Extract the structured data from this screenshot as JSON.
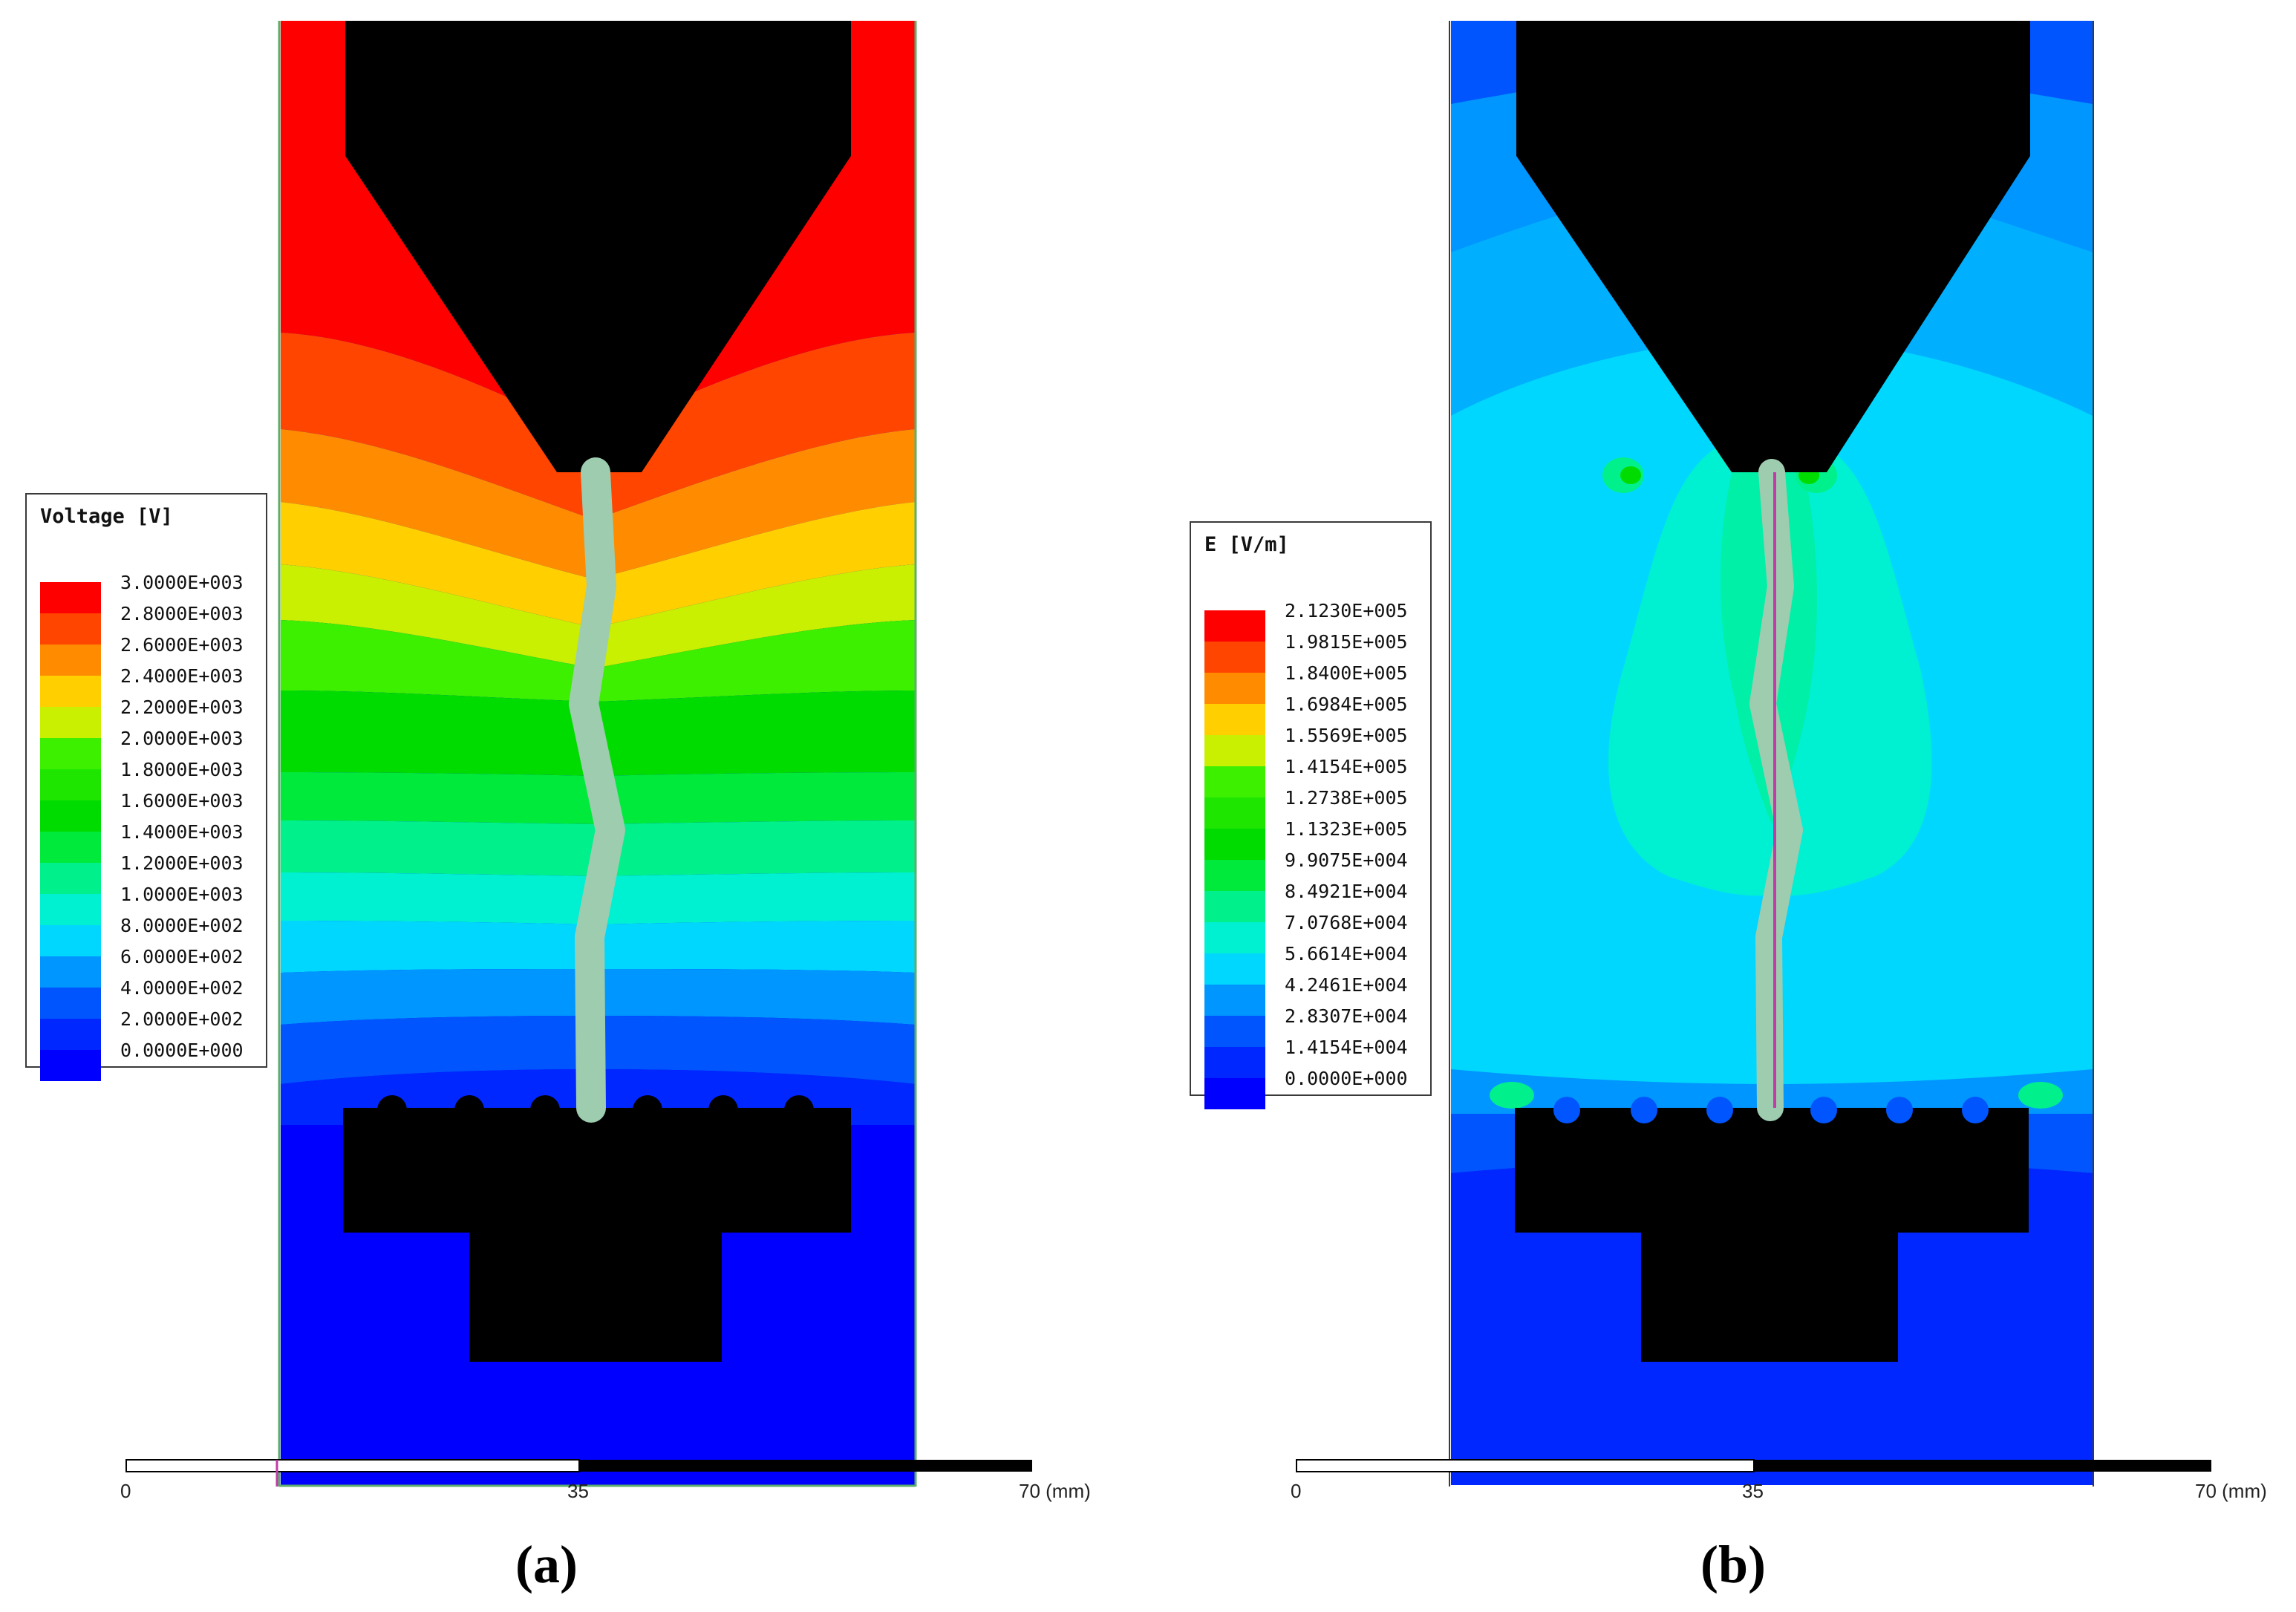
{
  "panels": [
    {
      "caption": "(a)",
      "legend": {
        "title": "Voltage [V]",
        "values": [
          "3.0000E+003",
          "2.8000E+003",
          "2.6000E+003",
          "2.4000E+003",
          "2.2000E+003",
          "2.0000E+003",
          "1.8000E+003",
          "1.6000E+003",
          "1.4000E+003",
          "1.2000E+003",
          "1.0000E+003",
          "8.0000E+002",
          "6.0000E+002",
          "4.0000E+002",
          "2.0000E+002",
          "0.0000E+000"
        ],
        "colors": [
          "#ff0000",
          "#ff4500",
          "#ff8c00",
          "#ffcf00",
          "#c8f000",
          "#3cf000",
          "#1ee600",
          "#00dc00",
          "#00ea3c",
          "#00f08c",
          "#00f0d2",
          "#00d7ff",
          "#0096ff",
          "#0055ff",
          "#0027ff",
          "#0000ff"
        ]
      },
      "scale_bar": {
        "tick_0": "0",
        "tick_mid": "35",
        "tick_end": "70 (mm)"
      }
    },
    {
      "caption": "(b)",
      "legend": {
        "title": "E [V/m]",
        "values": [
          "2.1230E+005",
          "1.9815E+005",
          "1.8400E+005",
          "1.6984E+005",
          "1.5569E+005",
          "1.4154E+005",
          "1.2738E+005",
          "1.1323E+005",
          "9.9075E+004",
          "8.4921E+004",
          "7.0768E+004",
          "5.6614E+004",
          "4.2461E+004",
          "2.8307E+004",
          "1.4154E+004",
          "0.0000E+000"
        ],
        "colors": [
          "#ff0000",
          "#ff4500",
          "#ff8c00",
          "#ffcf00",
          "#c8f000",
          "#3cf000",
          "#1ee600",
          "#00dc00",
          "#00ea3c",
          "#00f08c",
          "#00f0d2",
          "#00d7ff",
          "#0096ff",
          "#0055ff",
          "#0027ff",
          "#0000ff"
        ]
      },
      "scale_bar": {
        "tick_0": "0",
        "tick_mid": "35",
        "tick_end": "70 (mm)"
      }
    }
  ]
}
